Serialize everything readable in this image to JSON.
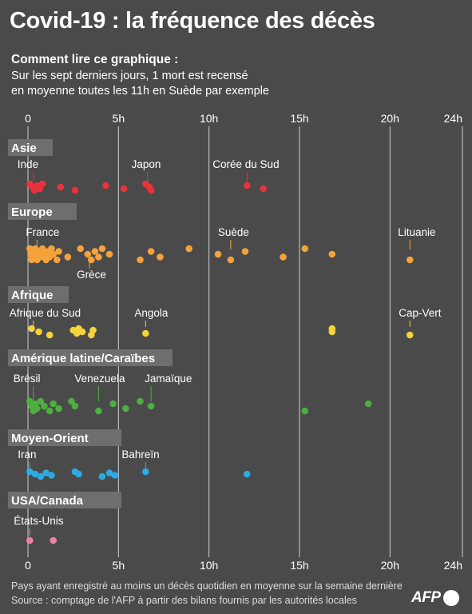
{
  "title": "Covid-19 : la fréquence des décès",
  "subtitle": {
    "heading": "Comment lire ce graphique :",
    "line1": "Sur les sept derniers jours, 1 mort est recensé",
    "line2": "en moyenne toutes les 11h en Suède par exemple"
  },
  "footer": {
    "line1": "Pays ayant enregistré au moins un décès quotidien en moyenne sur la semaine dernière",
    "line2": "Source : comptage de l'AFP à partir des bilans fournis par les autorités locales"
  },
  "logo_text": "AFP",
  "colors": {
    "background": "#4a4a4a",
    "region_band": "#6e6e6e",
    "gridline": "#cfcfcf",
    "asie": "#e8323c",
    "europe": "#f5a23a",
    "afrique": "#f5d33b",
    "amerique": "#4caf3f",
    "moyen_orient": "#2eaae1",
    "usa_canada": "#f07fa6"
  },
  "chart_data": {
    "type": "scatter",
    "x_unit": "h",
    "xlim": [
      0,
      24
    ],
    "x_ticks": [
      0,
      5,
      10,
      15,
      20,
      24
    ],
    "x_tick_labels": [
      "0",
      "5h",
      "10h",
      "15h",
      "20h",
      "24h"
    ],
    "grid": true,
    "regions": [
      {
        "label": "Asie",
        "color": "#e8323c",
        "points": [
          0.1,
          0.25,
          0.35,
          0.5,
          0.65,
          0.8,
          1.8,
          2.6,
          4.3,
          5.3,
          6.5,
          6.7,
          6.8,
          12.1,
          13.0
        ],
        "annotations": [
          {
            "label": "Inde",
            "x": 0.3
          },
          {
            "label": "Japon",
            "x": 6.6
          },
          {
            "label": "Corée du Sud",
            "x": 12.1
          }
        ]
      },
      {
        "label": "Europe",
        "color": "#f5a23a",
        "points": [
          0.1,
          0.15,
          0.2,
          0.3,
          0.35,
          0.4,
          0.45,
          0.5,
          0.6,
          0.7,
          0.8,
          0.9,
          1.0,
          1.1,
          1.2,
          1.3,
          1.4,
          1.6,
          1.7,
          2.2,
          2.9,
          3.3,
          3.5,
          3.7,
          3.9,
          4.1,
          4.5,
          6.2,
          6.8,
          7.3,
          8.9,
          10.5,
          11.2,
          12.0,
          14.1,
          15.3,
          16.8,
          21.1
        ],
        "annotations": [
          {
            "label": "France",
            "x": 0.5
          },
          {
            "label": "Grèce",
            "x": 3.4
          },
          {
            "label": "Suède",
            "x": 11.2
          },
          {
            "label": "Lituanie",
            "x": 21.1
          }
        ]
      },
      {
        "label": "Afrique",
        "color": "#f5d33b",
        "points": [
          0.2,
          0.6,
          1.2,
          2.5,
          2.7,
          2.8,
          3.0,
          3.5,
          3.6,
          6.5,
          16.8,
          16.8,
          21.1
        ],
        "annotations": [
          {
            "label": "Afrique du Sud",
            "x": 0.3
          },
          {
            "label": "Angola",
            "x": 6.5
          },
          {
            "label": "Cap-Vert",
            "x": 21.1
          }
        ]
      },
      {
        "label": "Amérique latine/Caraïbes",
        "color": "#4caf3f",
        "points": [
          0.1,
          0.2,
          0.3,
          0.4,
          0.5,
          0.7,
          0.9,
          1.2,
          1.4,
          1.7,
          2.4,
          2.6,
          3.9,
          4.7,
          5.4,
          6.2,
          6.8,
          15.3,
          18.8
        ],
        "annotations": [
          {
            "label": "Brésil",
            "x": 0.3
          },
          {
            "label": "Venezuela",
            "x": 3.9
          },
          {
            "label": "Jamaïque",
            "x": 6.8
          }
        ]
      },
      {
        "label": "Moyen-Orient",
        "color": "#2eaae1",
        "points": [
          0.1,
          0.4,
          0.7,
          1.0,
          1.3,
          2.6,
          2.8,
          4.1,
          4.5,
          4.8,
          6.5,
          12.1
        ],
        "annotations": [
          {
            "label": "Iran",
            "x": 0.1
          },
          {
            "label": "Bahreïn",
            "x": 6.5
          }
        ]
      },
      {
        "label": "USA/Canada",
        "color": "#f07fa6",
        "points": [
          0.1,
          1.4
        ],
        "annotations": [
          {
            "label": "États-Unis",
            "x": 0.1
          }
        ]
      }
    ]
  }
}
